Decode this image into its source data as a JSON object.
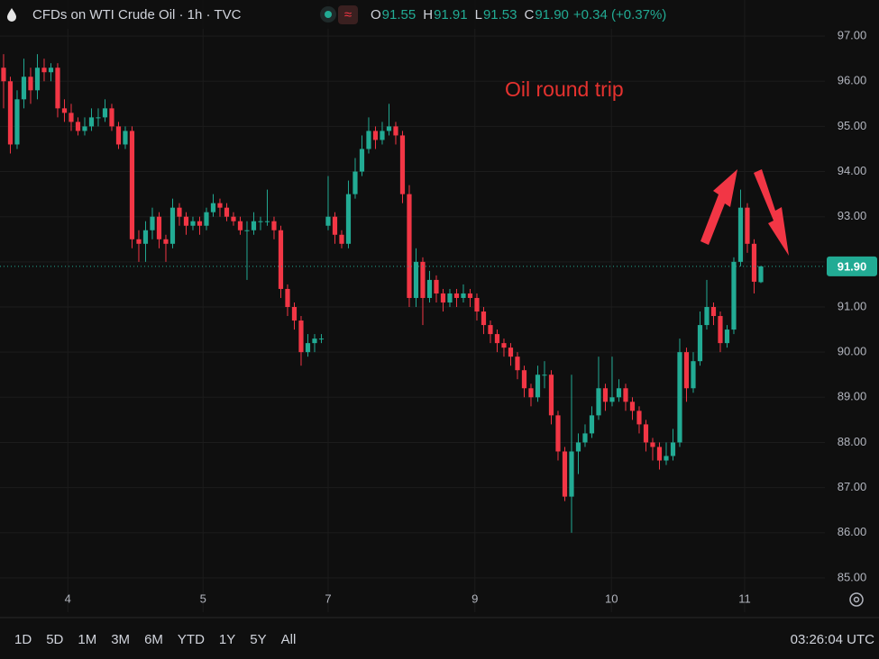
{
  "header": {
    "title": "CFDs on WTI Crude Oil · 1h · TVC",
    "ohlc": [
      {
        "label": "O",
        "value": "91.55"
      },
      {
        "label": "H",
        "value": "91.91"
      },
      {
        "label": "L",
        "value": "91.53"
      },
      {
        "label": "C",
        "value": "91.90"
      }
    ],
    "change": "+0.34 (+0.37%)"
  },
  "chart_data": {
    "type": "candlestick",
    "annotation": "Oil round trip",
    "up_color": "#22ab94",
    "down_color": "#f23645",
    "grid": true,
    "last_price": 91.9,
    "last_price_label": "91.90",
    "xlim": [
      -0.53,
      121.47
    ],
    "xticks": [
      {
        "value": 9.5,
        "label": "4"
      },
      {
        "value": 29.5,
        "label": "5"
      },
      {
        "value": 48,
        "label": "7"
      },
      {
        "value": 69.7,
        "label": "9"
      },
      {
        "value": 89.9,
        "label": "10"
      },
      {
        "value": 109.6,
        "label": "11"
      }
    ],
    "ylim": [
      84.24,
      97.8
    ],
    "yticks": [
      {
        "value": 85,
        "label": "85.00"
      },
      {
        "value": 86,
        "label": "86.00"
      },
      {
        "value": 87,
        "label": "87.00"
      },
      {
        "value": 88,
        "label": "88.00"
      },
      {
        "value": 89,
        "label": "89.00"
      },
      {
        "value": 90,
        "label": "90.00"
      },
      {
        "value": 91,
        "label": "91.00"
      },
      {
        "value": 92,
        "label": "92.00"
      },
      {
        "value": 93,
        "label": "93.00"
      },
      {
        "value": 94,
        "label": "94.00"
      },
      {
        "value": 95,
        "label": "95.00"
      },
      {
        "value": 96,
        "label": "96.00"
      },
      {
        "value": 97,
        "label": "97.00"
      }
    ],
    "candles": [
      [
        96.3,
        96.6,
        95.4,
        96.0
      ],
      [
        96.0,
        96.1,
        94.4,
        94.6
      ],
      [
        94.6,
        95.8,
        94.5,
        95.6
      ],
      [
        95.6,
        96.5,
        95.4,
        96.1
      ],
      [
        96.1,
        96.3,
        95.5,
        95.8
      ],
      [
        95.8,
        96.6,
        95.6,
        96.3
      ],
      [
        96.3,
        96.5,
        96.0,
        96.2
      ],
      [
        96.2,
        96.4,
        96.0,
        96.3
      ],
      [
        96.3,
        96.4,
        95.2,
        95.4
      ],
      [
        95.4,
        95.6,
        95.1,
        95.3
      ],
      [
        95.3,
        95.5,
        94.9,
        95.1
      ],
      [
        95.1,
        95.2,
        94.8,
        94.9
      ],
      [
        94.9,
        95.2,
        94.8,
        95.0
      ],
      [
        95.0,
        95.4,
        94.9,
        95.2
      ],
      [
        95.2,
        95.4,
        95.0,
        95.2
      ],
      [
        95.2,
        95.6,
        95.1,
        95.4
      ],
      [
        95.4,
        95.5,
        94.9,
        95.0
      ],
      [
        95.0,
        95.1,
        94.5,
        94.6
      ],
      [
        94.6,
        95.0,
        94.5,
        94.9
      ],
      [
        94.9,
        95.0,
        92.3,
        92.5
      ],
      [
        92.5,
        92.7,
        92.0,
        92.4
      ],
      [
        92.4,
        92.9,
        92.0,
        92.7
      ],
      [
        92.7,
        93.2,
        92.5,
        93.0
      ],
      [
        93.0,
        93.1,
        92.3,
        92.5
      ],
      [
        92.5,
        92.6,
        92.0,
        92.4
      ],
      [
        92.4,
        93.4,
        92.3,
        93.2
      ],
      [
        93.2,
        93.3,
        92.8,
        93.0
      ],
      [
        93.0,
        93.1,
        92.6,
        92.8
      ],
      [
        92.8,
        93.0,
        92.7,
        92.9
      ],
      [
        92.9,
        93.0,
        92.6,
        92.8
      ],
      [
        92.8,
        93.2,
        92.7,
        93.1
      ],
      [
        93.1,
        93.5,
        93.0,
        93.3
      ],
      [
        93.3,
        93.4,
        93.0,
        93.2
      ],
      [
        93.2,
        93.3,
        92.9,
        93.0
      ],
      [
        93.0,
        93.1,
        92.8,
        92.9
      ],
      [
        92.9,
        93.0,
        92.6,
        92.7
      ],
      [
        92.7,
        92.9,
        91.6,
        92.7
      ],
      [
        92.7,
        93.1,
        92.6,
        92.9
      ],
      [
        92.9,
        93.0,
        92.7,
        92.9
      ],
      [
        92.9,
        93.6,
        92.8,
        92.9
      ],
      [
        92.9,
        93.0,
        92.5,
        92.7
      ],
      [
        92.7,
        92.8,
        91.2,
        91.4
      ],
      [
        91.4,
        91.5,
        90.8,
        91.0
      ],
      [
        91.0,
        91.1,
        90.5,
        90.7
      ],
      [
        90.7,
        90.8,
        89.7,
        90.0
      ],
      [
        90.0,
        90.4,
        89.9,
        90.2
      ],
      [
        90.2,
        90.4,
        90.0,
        90.3
      ],
      [
        90.3,
        90.4,
        90.2,
        90.3
      ],
      [
        92.8,
        93.9,
        92.7,
        93.0
      ],
      [
        93.0,
        93.1,
        92.4,
        92.6
      ],
      [
        92.6,
        92.7,
        92.3,
        92.4
      ],
      [
        92.4,
        93.8,
        92.3,
        93.5
      ],
      [
        93.5,
        94.3,
        93.4,
        94.0
      ],
      [
        94.0,
        94.8,
        93.9,
        94.5
      ],
      [
        94.5,
        95.2,
        94.4,
        94.9
      ],
      [
        94.9,
        95.0,
        94.5,
        94.7
      ],
      [
        94.7,
        95.1,
        94.6,
        94.9
      ],
      [
        94.9,
        95.5,
        94.8,
        95.0
      ],
      [
        95.0,
        95.1,
        94.6,
        94.8
      ],
      [
        94.8,
        94.9,
        93.3,
        93.5
      ],
      [
        93.5,
        93.7,
        91.0,
        91.2
      ],
      [
        91.2,
        92.3,
        91.0,
        92.0
      ],
      [
        92.0,
        92.1,
        90.6,
        91.2
      ],
      [
        91.2,
        91.8,
        91.1,
        91.6
      ],
      [
        91.6,
        91.7,
        91.1,
        91.3
      ],
      [
        91.3,
        91.4,
        90.9,
        91.1
      ],
      [
        91.1,
        91.4,
        91.0,
        91.3
      ],
      [
        91.3,
        91.4,
        91.0,
        91.2
      ],
      [
        91.2,
        91.5,
        91.1,
        91.3
      ],
      [
        91.3,
        91.4,
        91.0,
        91.2
      ],
      [
        91.2,
        91.3,
        90.7,
        90.9
      ],
      [
        90.9,
        91.0,
        90.4,
        90.6
      ],
      [
        90.6,
        90.7,
        90.2,
        90.4
      ],
      [
        90.4,
        90.5,
        90.0,
        90.2
      ],
      [
        90.2,
        90.3,
        89.9,
        90.1
      ],
      [
        90.1,
        90.2,
        89.7,
        89.9
      ],
      [
        89.9,
        90.0,
        89.4,
        89.6
      ],
      [
        89.6,
        89.7,
        89.0,
        89.2
      ],
      [
        89.2,
        89.3,
        88.8,
        89.0
      ],
      [
        89.0,
        89.7,
        88.9,
        89.5
      ],
      [
        89.5,
        89.8,
        89.2,
        89.5
      ],
      [
        89.5,
        89.6,
        88.4,
        88.6
      ],
      [
        88.6,
        88.7,
        87.6,
        87.8
      ],
      [
        87.8,
        87.9,
        86.7,
        86.8
      ],
      [
        86.8,
        89.5,
        86.0,
        87.8
      ],
      [
        87.8,
        88.2,
        87.3,
        88.0
      ],
      [
        88.0,
        88.4,
        87.9,
        88.2
      ],
      [
        88.2,
        88.8,
        88.1,
        88.6
      ],
      [
        88.6,
        89.9,
        88.5,
        89.2
      ],
      [
        89.2,
        89.3,
        88.7,
        88.9
      ],
      [
        88.9,
        89.9,
        88.8,
        89.0
      ],
      [
        89.0,
        89.4,
        88.9,
        89.2
      ],
      [
        89.2,
        89.3,
        88.7,
        88.9
      ],
      [
        88.9,
        89.0,
        88.5,
        88.7
      ],
      [
        88.7,
        88.8,
        88.2,
        88.4
      ],
      [
        88.4,
        88.5,
        87.8,
        88.0
      ],
      [
        88.0,
        88.1,
        87.6,
        87.9
      ],
      [
        87.9,
        88.0,
        87.4,
        87.6
      ],
      [
        87.6,
        88.0,
        87.5,
        87.7
      ],
      [
        87.7,
        88.3,
        87.6,
        88.0
      ],
      [
        88.0,
        90.3,
        87.9,
        90.0
      ],
      [
        90.0,
        90.1,
        88.9,
        89.2
      ],
      [
        89.2,
        90.0,
        89.1,
        89.8
      ],
      [
        89.8,
        90.9,
        89.7,
        90.6
      ],
      [
        90.6,
        91.6,
        90.5,
        91.0
      ],
      [
        91.0,
        91.1,
        90.6,
        90.8
      ],
      [
        90.8,
        90.9,
        90.0,
        90.2
      ],
      [
        90.2,
        90.6,
        90.1,
        90.5
      ],
      [
        90.5,
        92.1,
        90.4,
        92.0
      ],
      [
        92.0,
        93.6,
        91.9,
        93.2
      ],
      [
        93.2,
        93.3,
        92.2,
        92.4
      ],
      [
        92.4,
        92.5,
        91.3,
        91.56
      ],
      [
        91.55,
        91.91,
        91.53,
        91.9
      ]
    ]
  },
  "toolbar": {
    "ranges": [
      "1D",
      "5D",
      "1M",
      "3M",
      "6M",
      "YTD",
      "1Y",
      "5Y",
      "All"
    ],
    "clock": "03:26:04 UTC"
  }
}
